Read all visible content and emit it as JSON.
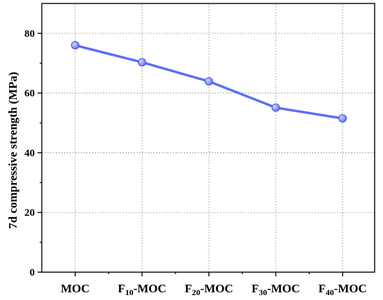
{
  "chart_data": {
    "type": "line",
    "categories": [
      "MOC",
      "F10-MOC",
      "F20-MOC",
      "F30-MOC",
      "F40-MOC"
    ],
    "category_labels": [
      {
        "main": "MOC",
        "sub": "",
        "rest": ""
      },
      {
        "main": "F",
        "sub": "10",
        "rest": "-MOC"
      },
      {
        "main": "F",
        "sub": "20",
        "rest": "-MOC"
      },
      {
        "main": "F",
        "sub": "30",
        "rest": "-MOC"
      },
      {
        "main": "F",
        "sub": "40",
        "rest": "-MOC"
      }
    ],
    "series": [
      {
        "values": [
          76.0,
          70.3,
          63.9,
          55.1,
          51.5
        ],
        "color": "#5b6ef5"
      }
    ],
    "xlabel": "",
    "ylabel": "7d compressive strength (MPa)",
    "ylim": [
      0,
      90
    ],
    "yticks": [
      "0",
      "20",
      "40",
      "60",
      "80"
    ],
    "grid": true
  }
}
